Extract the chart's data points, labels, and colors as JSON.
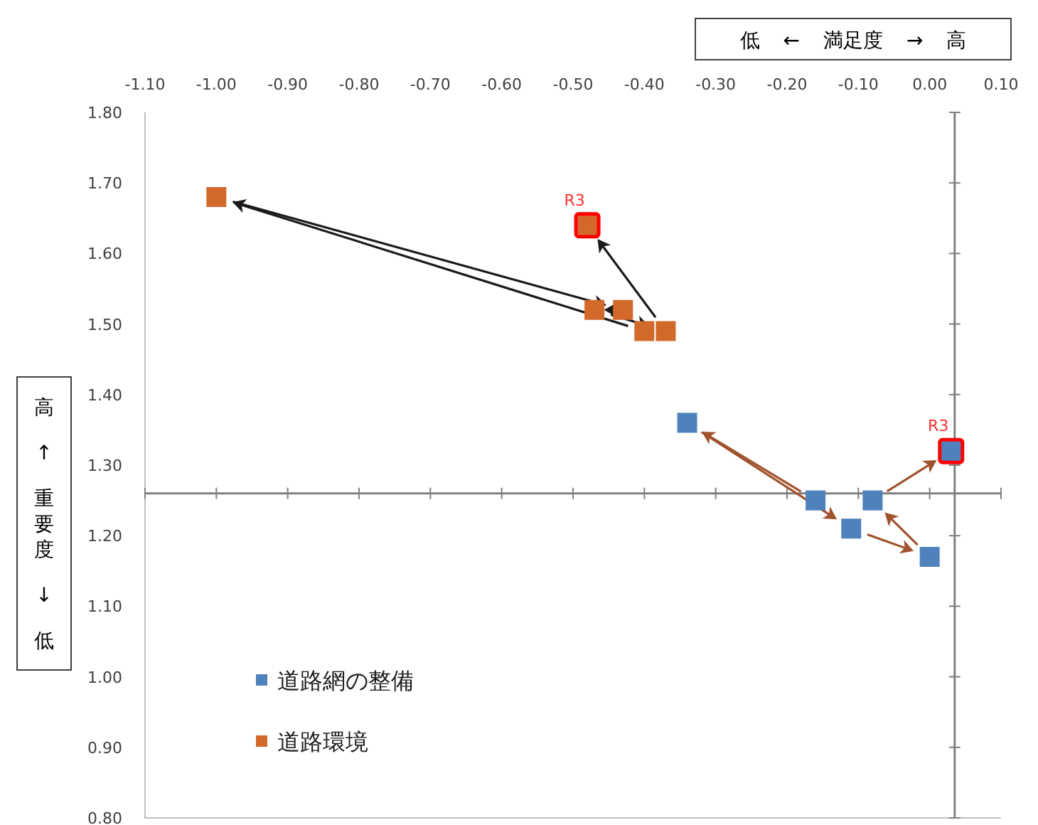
{
  "chart_data": {
    "type": "scatter",
    "xlabel": "低 ← 満足度 → 高",
    "ylabel": "高 ↑ 重要度 ↓ 低",
    "xlim": [
      -1.1,
      0.1
    ],
    "ylim": [
      0.8,
      1.8
    ],
    "xticks": [
      {
        "value": -1.1,
        "label": "-1.10"
      },
      {
        "value": -1.0,
        "label": "-1.00"
      },
      {
        "value": -0.9,
        "label": "-0.90"
      },
      {
        "value": -0.8,
        "label": "-0.80"
      },
      {
        "value": -0.7,
        "label": "-0.70"
      },
      {
        "value": -0.6,
        "label": "-0.60"
      },
      {
        "value": -0.5,
        "label": "-0.50"
      },
      {
        "value": -0.4,
        "label": "-0.40"
      },
      {
        "value": -0.3,
        "label": "-0.30"
      },
      {
        "value": -0.2,
        "label": "-0.20"
      },
      {
        "value": -0.1,
        "label": "-0.10"
      },
      {
        "value": 0,
        "label": "0.00"
      },
      {
        "value": 0.1,
        "label": "0.10"
      }
    ],
    "yticks": [
      {
        "value": 0.8,
        "label": "0.80"
      },
      {
        "value": 0.9,
        "label": "0.90"
      },
      {
        "value": 1.0,
        "label": "1.00"
      },
      {
        "value": 1.1,
        "label": "1.10"
      },
      {
        "value": 1.2,
        "label": "1.20"
      },
      {
        "value": 1.3,
        "label": "1.30"
      },
      {
        "value": 1.4,
        "label": "1.40"
      },
      {
        "value": 1.5,
        "label": "1.50"
      },
      {
        "value": 1.6,
        "label": "1.60"
      },
      {
        "value": 1.7,
        "label": "1.70"
      },
      {
        "value": 1.8,
        "label": "1.80"
      }
    ],
    "series": [
      {
        "name": "道路網の整備",
        "color": "#4f81bd",
        "x": [
          -0.16,
          -0.34,
          -0.11,
          0.0,
          -0.08,
          0.03
        ],
        "values": [
          1.25,
          1.36,
          1.21,
          1.17,
          1.25,
          1.32
        ]
      },
      {
        "name": "道路環境",
        "color": "#d2692a",
        "x": [
          -0.4,
          -1.0,
          -0.43,
          -0.47,
          -0.37,
          -0.48
        ],
        "values": [
          1.49,
          1.68,
          1.52,
          1.52,
          1.49,
          1.64
        ]
      }
    ],
    "ref_lines": [
      {
        "axis": "x",
        "value": 0.035,
        "color": "#808080"
      },
      {
        "axis": "y",
        "value": 1.26,
        "color": "#808080"
      }
    ],
    "annotations": [
      {
        "text": "R3",
        "x": -0.48,
        "y": 1.64
      },
      {
        "text": "R3",
        "x": 0.03,
        "y": 1.32
      }
    ],
    "marker": "square",
    "grid": false,
    "legend": "bottom left"
  }
}
